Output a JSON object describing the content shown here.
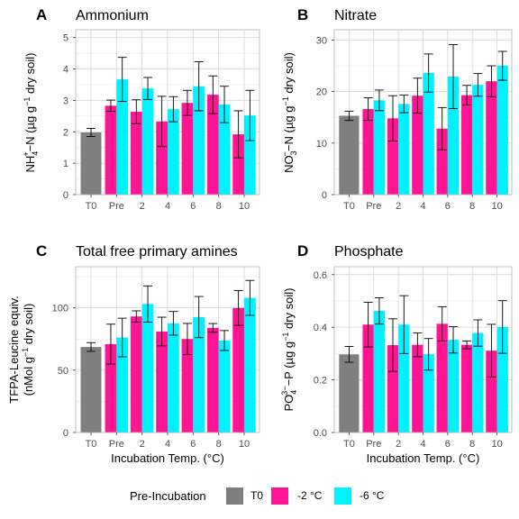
{
  "legend": {
    "title": "Pre-Incubation",
    "items": [
      {
        "label": "T0",
        "color": "#7f7f7f"
      },
      {
        "label": "-2 °C",
        "color": "#ff1493"
      },
      {
        "label": "-6 °C",
        "color": "#00f2ff"
      }
    ]
  },
  "chart_data": [
    {
      "type": "bar",
      "panel": "A",
      "title": "Ammonium",
      "xlabel": "",
      "ylabel_parts": {
        "main": "NH",
        "sub": "4",
        "sup": "+",
        "rest": "−N (µg g",
        "unit_sup": "−1",
        "tail": " dry soil)"
      },
      "categories": [
        "T0",
        "Pre",
        "2",
        "4",
        "6",
        "8",
        "10"
      ],
      "ylim": [
        0,
        5.25
      ],
      "yticks": [
        0,
        1,
        2,
        3,
        4,
        5
      ],
      "grid": true,
      "series": [
        {
          "name": "T0",
          "color": "#7f7f7f",
          "values": [
            1.98,
            null,
            null,
            null,
            null,
            null,
            null
          ],
          "err": [
            0.13,
            null,
            null,
            null,
            null,
            null,
            null
          ]
        },
        {
          "name": "-2 °C",
          "color": "#ff1493",
          "values": [
            null,
            2.83,
            2.64,
            2.33,
            2.92,
            3.18,
            1.92
          ],
          "err": [
            null,
            0.18,
            0.38,
            0.8,
            0.4,
            0.6,
            0.75
          ]
        },
        {
          "name": "-6 °C",
          "color": "#00f2ff",
          "values": [
            null,
            3.67,
            3.38,
            2.72,
            3.45,
            2.87,
            2.52
          ],
          "err": [
            null,
            0.7,
            0.35,
            0.4,
            0.78,
            0.58,
            0.8
          ]
        }
      ]
    },
    {
      "type": "bar",
      "panel": "B",
      "title": "Nitrate",
      "xlabel": "",
      "ylabel_parts": {
        "main": "NO",
        "sub": "3",
        "sup": "−",
        "rest": "−N (µg g",
        "unit_sup": "−1",
        "tail": " dry soil)"
      },
      "categories": [
        "T0",
        "Pre",
        "2",
        "4",
        "6",
        "8",
        "10"
      ],
      "ylim": [
        0,
        32
      ],
      "yticks": [
        0,
        10,
        20,
        30
      ],
      "grid": true,
      "series": [
        {
          "name": "T0",
          "color": "#7f7f7f",
          "values": [
            15.3,
            null,
            null,
            null,
            null,
            null,
            null
          ],
          "err": [
            0.9,
            null,
            null,
            null,
            null,
            null,
            null
          ]
        },
        {
          "name": "-2 °C",
          "color": "#ff1493",
          "values": [
            null,
            16.6,
            14.8,
            19.2,
            12.8,
            19.3,
            22.0
          ],
          "err": [
            null,
            2.2,
            4.4,
            3.4,
            4.1,
            1.9,
            3.0
          ]
        },
        {
          "name": "-6 °C",
          "color": "#00f2ff",
          "values": [
            null,
            18.3,
            17.6,
            23.6,
            22.9,
            21.3,
            25.0
          ],
          "err": [
            null,
            2.0,
            1.7,
            3.7,
            6.2,
            2.2,
            2.8
          ]
        }
      ]
    },
    {
      "type": "bar",
      "panel": "C",
      "title": "Total free primary amines",
      "xlabel": "Incubation Temp. (°C)",
      "ylabel_lines": [
        "TFPA-Leucine equiv.",
        "(nMol g",
        "−1",
        " dry soil)"
      ],
      "categories": [
        "T0",
        "Pre",
        "2",
        "4",
        "6",
        "8",
        "10"
      ],
      "ylim": [
        0,
        133
      ],
      "yticks": [
        0,
        50,
        100
      ],
      "grid": true,
      "series": [
        {
          "name": "T0",
          "color": "#7f7f7f",
          "values": [
            68.6,
            null,
            null,
            null,
            null,
            null,
            null
          ],
          "err": [
            3.5,
            null,
            null,
            null,
            null,
            null,
            null
          ]
        },
        {
          "name": "-2 °C",
          "color": "#ff1493",
          "values": [
            null,
            70.9,
            93.1,
            81.0,
            75.0,
            83.9,
            99.9
          ],
          "err": [
            null,
            16.0,
            4.5,
            11.5,
            12.5,
            3.5,
            14.0
          ]
        },
        {
          "name": "-6 °C",
          "color": "#00f2ff",
          "values": [
            null,
            76.2,
            103.1,
            87.6,
            92.6,
            73.8,
            108.0
          ],
          "err": [
            null,
            15.5,
            14.5,
            9.5,
            16.5,
            8.0,
            14.0
          ]
        }
      ]
    },
    {
      "type": "bar",
      "panel": "D",
      "title": "Phosphate",
      "xlabel": "Incubation Temp. (°C)",
      "ylabel_parts": {
        "main": "PO",
        "sub": "4",
        "sup": "3−",
        "rest": "−P (µg g",
        "unit_sup": "−1",
        "tail": " dry soil)"
      },
      "categories": [
        "T0",
        "Pre",
        "2",
        "4",
        "6",
        "8",
        "10"
      ],
      "ylim": [
        0,
        0.63
      ],
      "yticks": [
        0.0,
        0.2,
        0.4,
        0.6
      ],
      "ytick_labels": [
        "0.0",
        "0.2",
        "0.4",
        "0.6"
      ],
      "grid": true,
      "series": [
        {
          "name": "T0",
          "color": "#7f7f7f",
          "values": [
            0.297,
            null,
            null,
            null,
            null,
            null,
            null
          ],
          "err": [
            0.03,
            null,
            null,
            null,
            null,
            null,
            null
          ]
        },
        {
          "name": "-2 °C",
          "color": "#ff1493",
          "values": [
            null,
            0.41,
            0.332,
            0.333,
            0.413,
            0.333,
            0.311
          ],
          "err": [
            null,
            0.085,
            0.1,
            0.045,
            0.065,
            0.015,
            0.1
          ]
        },
        {
          "name": "-6 °C",
          "color": "#00f2ff",
          "values": [
            null,
            0.462,
            0.41,
            0.297,
            0.352,
            0.378,
            0.401
          ],
          "err": [
            null,
            0.05,
            0.11,
            0.06,
            0.05,
            0.05,
            0.1
          ]
        }
      ]
    }
  ]
}
